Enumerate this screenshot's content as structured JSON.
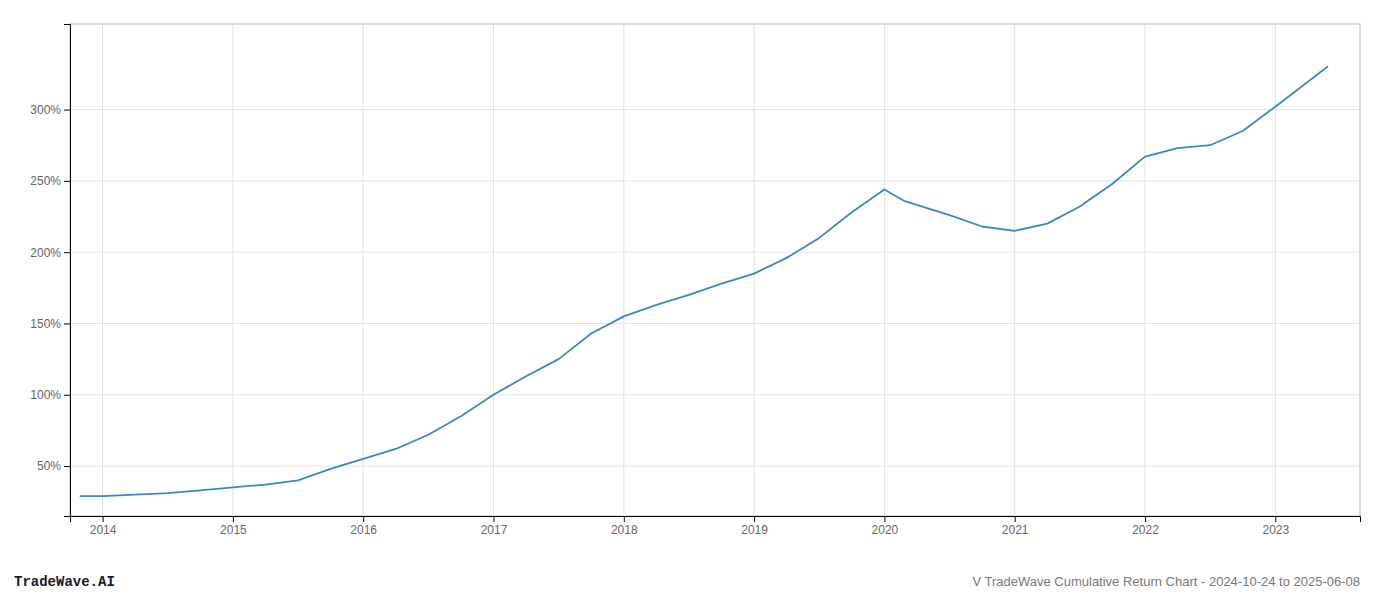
{
  "chart_data": {
    "type": "line",
    "title": "V TradeWave Cumulative Return Chart - 2024-10-24 to 2025-06-08",
    "annotations": [
      "TradeWave.AI"
    ],
    "x": [
      2013.83,
      2014.0,
      2014.25,
      2014.5,
      2014.75,
      2015.0,
      2015.25,
      2015.5,
      2015.75,
      2016.0,
      2016.25,
      2016.5,
      2016.75,
      2017.0,
      2017.25,
      2017.5,
      2017.75,
      2018.0,
      2018.25,
      2018.5,
      2018.75,
      2019.0,
      2019.25,
      2019.5,
      2019.75,
      2020.0,
      2020.15,
      2020.5,
      2020.75,
      2021.0,
      2021.25,
      2021.5,
      2021.75,
      2022.0,
      2022.25,
      2022.5,
      2022.75,
      2023.0,
      2023.4
    ],
    "values": [
      29,
      29,
      30,
      31,
      33,
      35,
      37,
      40,
      48,
      55,
      62,
      72,
      85,
      100,
      113,
      125,
      143,
      155,
      163,
      170,
      178,
      185,
      196,
      210,
      228,
      244,
      236,
      226,
      218,
      215,
      220,
      232,
      248,
      267,
      273,
      275,
      285,
      302,
      330
    ],
    "color": "#3a87c8",
    "xlim": [
      2013.75,
      2023.65
    ],
    "xticks": [
      2014,
      2015,
      2016,
      2017,
      2018,
      2019,
      2020,
      2021,
      2022,
      2023
    ],
    "ylim": [
      15,
      360
    ],
    "yticks": [
      {
        "value": 50,
        "label": "50%"
      },
      {
        "value": 100,
        "label": "100%"
      },
      {
        "value": 150,
        "label": "150%"
      },
      {
        "value": 200,
        "label": "200%"
      },
      {
        "value": 250,
        "label": "250%"
      },
      {
        "value": 300,
        "label": "300%"
      }
    ],
    "grid": true
  }
}
